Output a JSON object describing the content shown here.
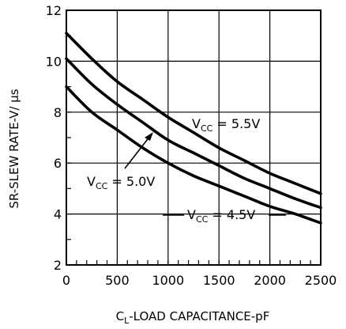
{
  "chart_data": {
    "type": "line",
    "xlabel": {
      "main": "C",
      "sub": "L",
      "rest": "-LOAD CAPACITANCE-pF"
    },
    "ylabel": "SR-SLEW RATE-V/ μs",
    "xlim": [
      0,
      2500
    ],
    "ylim": [
      2,
      12
    ],
    "x_ticks": [
      0,
      500,
      1000,
      1500,
      2000,
      2500
    ],
    "y_ticks": [
      2,
      4,
      6,
      8,
      10,
      12
    ],
    "grid": true,
    "series": [
      {
        "name": "VCC = 5.5V",
        "x": [
          0,
          250,
          500,
          750,
          1000,
          1250,
          1500,
          1750,
          2000,
          2250,
          2500
        ],
        "y": [
          11.1,
          10.1,
          9.2,
          8.5,
          7.8,
          7.2,
          6.6,
          6.1,
          5.6,
          5.2,
          4.8
        ]
      },
      {
        "name": "VCC = 5.0V",
        "x": [
          0,
          250,
          500,
          750,
          1000,
          1250,
          1500,
          1750,
          2000,
          2250,
          2500
        ],
        "y": [
          10.1,
          9.1,
          8.3,
          7.6,
          6.9,
          6.4,
          5.9,
          5.4,
          5.0,
          4.6,
          4.25
        ]
      },
      {
        "name": "VCC = 4.5V",
        "x": [
          0,
          250,
          500,
          750,
          1000,
          1250,
          1500,
          1750,
          2000,
          2250,
          2500
        ],
        "y": [
          9.0,
          8.0,
          7.3,
          6.6,
          6.0,
          5.5,
          5.1,
          4.7,
          4.3,
          4.0,
          3.65
        ]
      }
    ],
    "annotations": [
      {
        "label": "5.5V",
        "main": "V",
        "sub": "CC",
        "rest": " = 5.5V"
      },
      {
        "label": "5.0V",
        "main": "V",
        "sub": "CC",
        "rest": " = 5.0V"
      },
      {
        "label": "4.5V",
        "main": "V",
        "sub": "CC",
        "rest": " = 4.5V"
      }
    ]
  }
}
